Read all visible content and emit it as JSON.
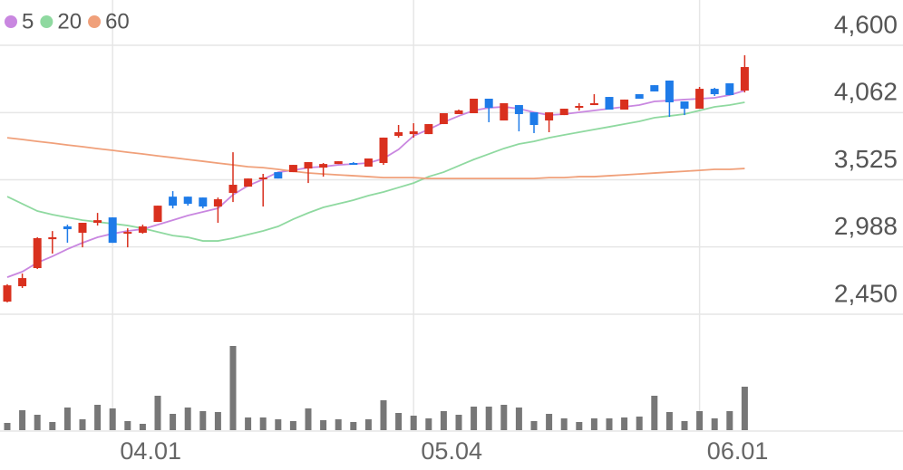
{
  "chart_data": {
    "type": "candlestick",
    "up_color": "#d9301e",
    "down_color": "#1e7be8",
    "volume_color": "#777777",
    "grid": true,
    "categories": [
      null,
      null,
      null,
      null,
      null,
      null,
      null,
      "04.01",
      null,
      null,
      null,
      null,
      null,
      null,
      null,
      null,
      null,
      null,
      null,
      null,
      null,
      null,
      null,
      null,
      null,
      null,
      null,
      "05.04",
      null,
      null,
      null,
      null,
      null,
      null,
      null,
      null,
      null,
      null,
      null,
      null,
      null,
      null,
      null,
      null,
      null,
      null,
      "06.01",
      null,
      null,
      null
    ],
    "open": [
      2551,
      2674,
      2819,
      3050,
      3152,
      3101,
      3181,
      3224,
      3101,
      3101,
      3188,
      3390,
      3390,
      3383,
      3311,
      3420,
      3470,
      3535,
      3586,
      3586,
      3615,
      3622,
      3651,
      3659,
      3630,
      3659,
      3876,
      3890,
      3890,
      3970,
      4050,
      4057,
      4173,
      3999,
      4122,
      4064,
      3999,
      4042,
      4100,
      4122,
      4187,
      4086,
      4209,
      4281,
      4318,
      4151,
      4093,
      4252,
      4296,
      4238
    ],
    "high": [
      2690,
      2775,
      3065,
      3115,
      3166,
      3181,
      3260,
      3224,
      3137,
      3166,
      3318,
      3434,
      3390,
      3383,
      3383,
      3745,
      3535,
      3572,
      3586,
      3644,
      3666,
      3659,
      3673,
      3666,
      3695,
      3862,
      3963,
      3977,
      3970,
      4057,
      4086,
      4173,
      4173,
      4137,
      4122,
      4064,
      4064,
      4093,
      4137,
      4209,
      4187,
      4166,
      4209,
      4281,
      4318,
      4151,
      4267,
      4260,
      4296,
      4520
    ],
    "low": [
      2545,
      2660,
      2812,
      2935,
      3022,
      2985,
      3159,
      3021,
      2985,
      3094,
      3188,
      3296,
      3318,
      3296,
      3181,
      3347,
      3470,
      3311,
      3535,
      3586,
      3499,
      3550,
      3651,
      3651,
      3630,
      3644,
      3862,
      3862,
      3890,
      3970,
      4050,
      4057,
      3985,
      3999,
      3912,
      3898,
      3905,
      4042,
      4079,
      4122,
      4086,
      4086,
      4173,
      4231,
      4028,
      4042,
      4093,
      4195,
      4202,
      4223
    ],
    "close": [
      2681,
      2739,
      3058,
      3065,
      3130,
      3181,
      3202,
      3021,
      3108,
      3152,
      3318,
      3318,
      3333,
      3311,
      3369,
      3485,
      3535,
      3543,
      3535,
      3644,
      3666,
      3651,
      3673,
      3651,
      3695,
      3862,
      3905,
      3912,
      3970,
      4057,
      4079,
      4173,
      4100,
      4137,
      4050,
      3963,
      4064,
      4093,
      4115,
      4137,
      4086,
      4166,
      4173,
      4231,
      4144,
      4093,
      4252,
      4209,
      4202,
      4426
    ],
    "volume": [
      8,
      22,
      17,
      9,
      25,
      12,
      28,
      24,
      10,
      7,
      38,
      18,
      25,
      21,
      20,
      93,
      14,
      14,
      12,
      10,
      24,
      11,
      12,
      9,
      12,
      33,
      19,
      16,
      13,
      21,
      17,
      26,
      26,
      28,
      25,
      10,
      18,
      13,
      9,
      13,
      13,
      14,
      15,
      38,
      20,
      10,
      21,
      13,
      21,
      48
    ],
    "series": [
      {
        "name": "5",
        "color": "#c987e0",
        "values": [
          2746,
          2790,
          2862,
          2913,
          2971,
          3021,
          3065,
          3094,
          3116,
          3130,
          3166,
          3202,
          3239,
          3268,
          3297,
          3405,
          3478,
          3528,
          3586,
          3601,
          3622,
          3630,
          3644,
          3651,
          3659,
          3695,
          3767,
          3876,
          3927,
          3985,
          4035,
          4079,
          4100,
          4108,
          4093,
          4064,
          4042,
          4050,
          4064,
          4079,
          4093,
          4108,
          4122,
          4151,
          4158,
          4166,
          4173,
          4180,
          4202,
          4238
        ]
      },
      {
        "name": "20",
        "color": "#8fd9a0",
        "values": [
          3391,
          3333,
          3275,
          3246,
          3224,
          3202,
          3188,
          3174,
          3159,
          3137,
          3108,
          3079,
          3065,
          3036,
          3036,
          3058,
          3087,
          3116,
          3152,
          3210,
          3260,
          3304,
          3333,
          3362,
          3398,
          3427,
          3463,
          3499,
          3550,
          3586,
          3637,
          3687,
          3731,
          3775,
          3811,
          3832,
          3861,
          3883,
          3905,
          3927,
          3948,
          3970,
          3992,
          4021,
          4035,
          4050,
          4079,
          4108,
          4122,
          4144
        ]
      },
      {
        "name": "60",
        "color": "#f0a07a",
        "values": [
          3861,
          3847,
          3832,
          3818,
          3803,
          3789,
          3774,
          3760,
          3745,
          3731,
          3716,
          3702,
          3687,
          3673,
          3658,
          3644,
          3629,
          3622,
          3608,
          3593,
          3579,
          3571,
          3564,
          3557,
          3550,
          3542,
          3542,
          3542,
          3535,
          3535,
          3535,
          3535,
          3535,
          3535,
          3535,
          3535,
          3542,
          3542,
          3550,
          3550,
          3557,
          3564,
          3571,
          3579,
          3586,
          3593,
          3600,
          3608,
          3608,
          3615
        ]
      }
    ],
    "ylim": [
      2450,
      4600
    ],
    "yticks": [
      {
        "value": 2450,
        "label": "2,450"
      },
      {
        "value": 2988,
        "label": "2,988"
      },
      {
        "value": 3525,
        "label": "3,525"
      },
      {
        "value": 4062,
        "label": "4,062"
      },
      {
        "value": 4600,
        "label": "4,600"
      }
    ]
  }
}
